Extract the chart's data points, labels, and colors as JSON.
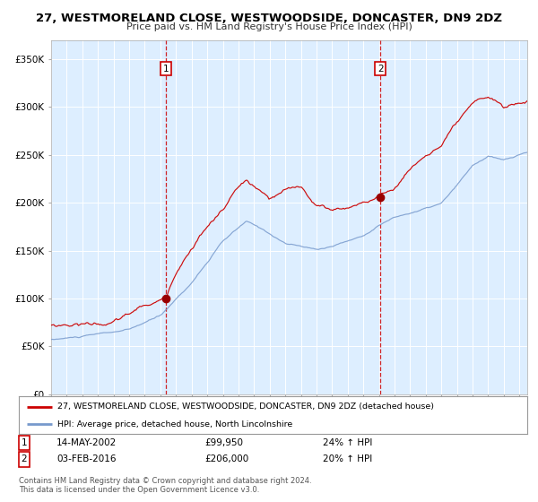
{
  "title": "27, WESTMORELAND CLOSE, WESTWOODSIDE, DONCASTER, DN9 2DZ",
  "subtitle": "Price paid vs. HM Land Registry's House Price Index (HPI)",
  "xlim_start": 1995.0,
  "xlim_end": 2025.5,
  "ylim": [
    0,
    370000
  ],
  "yticks": [
    0,
    50000,
    100000,
    150000,
    200000,
    250000,
    300000,
    350000
  ],
  "ytick_labels": [
    "£0",
    "£50K",
    "£100K",
    "£150K",
    "£200K",
    "£250K",
    "£300K",
    "£350K"
  ],
  "background_color": "#ffffff",
  "plot_bg_color": "#ddeeff",
  "grid_color": "#bbccdd",
  "sale1_date": 2002.37,
  "sale1_price": 99950,
  "sale2_date": 2016.09,
  "sale2_price": 206000,
  "vline1_x": 2002.37,
  "vline2_x": 2016.09,
  "legend1_label": "27, WESTMORELAND CLOSE, WESTWOODSIDE, DONCASTER, DN9 2DZ (detached house)",
  "legend2_label": "HPI: Average price, detached house, North Lincolnshire",
  "table_row1": [
    "1",
    "14-MAY-2002",
    "£99,950",
    "24% ↑ HPI"
  ],
  "table_row2": [
    "2",
    "03-FEB-2016",
    "£206,000",
    "20% ↑ HPI"
  ],
  "footnote": "Contains HM Land Registry data © Crown copyright and database right 2024.\nThis data is licensed under the Open Government Licence v3.0.",
  "red_line_color": "#cc0000",
  "blue_line_color": "#7799cc",
  "marker_color": "#990000",
  "vline_color": "#cc0000",
  "label_box_color": "#cc0000"
}
